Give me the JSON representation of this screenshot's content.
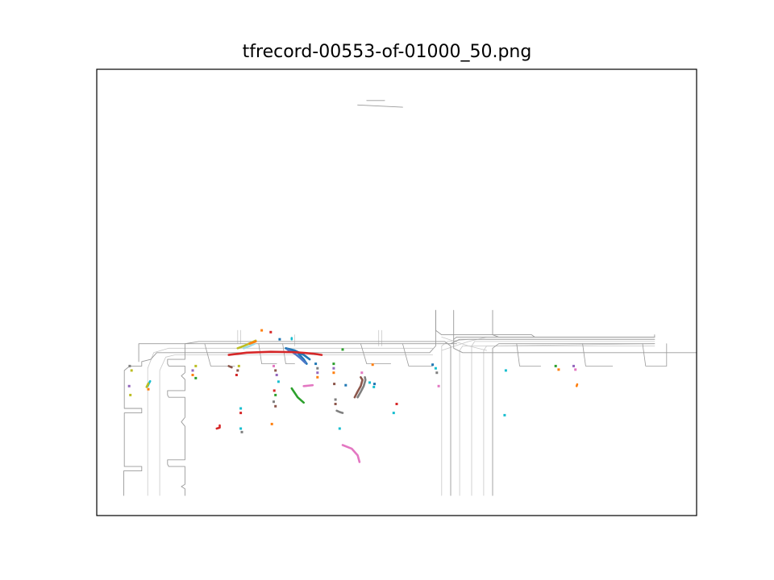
{
  "chart_data": {
    "type": "scatter",
    "title": "tfrecord-00553-of-01000_50.png",
    "xlabel": "",
    "ylabel": "",
    "xlim": [
      0,
      100
    ],
    "ylim": [
      0,
      100
    ],
    "grid": false,
    "axis_ticks": false,
    "road_color": "#9a9a9a",
    "lane_color": "#c8c8c8",
    "roads": [
      [
        [
          4.5,
          4.5
        ],
        [
          4.5,
          10
        ],
        [
          7.5,
          10
        ],
        [
          7.5,
          11
        ],
        [
          4.6,
          11
        ],
        [
          4.6,
          23
        ],
        [
          7.5,
          23
        ],
        [
          7.5,
          24
        ],
        [
          4.6,
          24
        ],
        [
          4.6,
          32.5
        ],
        [
          5.5,
          33.5
        ],
        [
          7.5,
          33.5
        ],
        [
          7.5,
          34.5
        ],
        [
          9,
          35
        ]
      ],
      [
        [
          9,
          35
        ],
        [
          10,
          36.5
        ],
        [
          55.5,
          36.5
        ],
        [
          56.5,
          38
        ],
        [
          56.5,
          46
        ]
      ],
      [
        [
          59.5,
          46
        ],
        [
          59.5,
          37.5
        ],
        [
          61,
          36.5
        ],
        [
          100,
          36.5
        ]
      ],
      [
        [
          14.7,
          4.5
        ],
        [
          14.7,
          6
        ],
        [
          14.1,
          6.5
        ],
        [
          14.7,
          7
        ],
        [
          14.7,
          11
        ],
        [
          12,
          11
        ],
        [
          11.8,
          11.5
        ],
        [
          11.8,
          12.5
        ],
        [
          14.7,
          12.5
        ],
        [
          14.7,
          20
        ],
        [
          14.1,
          21
        ],
        [
          14.7,
          22
        ],
        [
          14.7,
          26.5
        ],
        [
          12,
          26.5
        ],
        [
          11.8,
          27
        ],
        [
          11.8,
          28
        ],
        [
          14.7,
          28
        ],
        [
          14.7,
          30.5
        ],
        [
          14.1,
          31.3
        ],
        [
          14.7,
          32
        ],
        [
          14.7,
          33.5
        ],
        [
          12,
          33.5
        ],
        [
          11.8,
          34
        ],
        [
          11.8,
          35
        ],
        [
          14.7,
          35
        ],
        [
          14.7,
          38.5
        ],
        [
          17,
          39
        ],
        [
          58,
          39
        ],
        [
          59,
          38
        ],
        [
          59,
          4.5
        ]
      ],
      [
        [
          66,
          4.5
        ],
        [
          66,
          37.5
        ],
        [
          67,
          38.5
        ],
        [
          93,
          38.5
        ]
      ],
      [
        [
          7,
          34.5
        ],
        [
          7,
          38.5
        ],
        [
          60,
          38.5
        ]
      ],
      [
        [
          59,
          38.5
        ],
        [
          60.5,
          39.5
        ],
        [
          93,
          39.5
        ]
      ],
      [
        [
          56.5,
          46
        ],
        [
          56.5,
          41.5
        ],
        [
          57.5,
          40.5
        ],
        [
          72.5,
          40.5
        ],
        [
          73,
          40
        ],
        [
          93,
          40
        ]
      ],
      [
        [
          59.5,
          39.5
        ],
        [
          60,
          40
        ],
        [
          93,
          40
        ],
        [
          93,
          40.5
        ]
      ],
      [
        [
          66,
          46
        ],
        [
          66,
          40.5
        ],
        [
          67,
          40
        ],
        [
          93,
          40
        ]
      ],
      [
        [
          43.5,
          92
        ],
        [
          51,
          91.5
        ]
      ],
      [
        [
          45,
          93
        ],
        [
          48,
          93
        ]
      ]
    ],
    "lanes": [
      [
        [
          8.5,
          4.5
        ],
        [
          8.5,
          33
        ],
        [
          9.5,
          36.5
        ],
        [
          12,
          37.5
        ],
        [
          56,
          37.5
        ]
      ],
      [
        [
          10.5,
          4.5
        ],
        [
          10.5,
          32.5
        ],
        [
          11.5,
          35.5
        ],
        [
          13,
          36
        ],
        [
          56,
          36
        ]
      ],
      [
        [
          57.5,
          4.5
        ],
        [
          57.5,
          38
        ],
        [
          58.5,
          39
        ],
        [
          62,
          39.5
        ],
        [
          93,
          39.5
        ]
      ],
      [
        [
          60.5,
          4.5
        ],
        [
          60.5,
          37
        ],
        [
          61,
          38
        ],
        [
          93,
          38
        ]
      ],
      [
        [
          62.5,
          4.5
        ],
        [
          62.5,
          38
        ],
        [
          63,
          39
        ],
        [
          93,
          39
        ]
      ],
      [
        [
          64.5,
          4.5
        ],
        [
          64.5,
          37
        ],
        [
          65,
          38
        ],
        [
          93,
          38.5
        ]
      ],
      [
        [
          57.5,
          40
        ],
        [
          62,
          38
        ],
        [
          65,
          37
        ]
      ],
      [
        [
          57.5,
          37
        ],
        [
          62,
          39
        ],
        [
          65,
          40
        ]
      ],
      [
        [
          33,
          38
        ],
        [
          33,
          40.5
        ]
      ],
      [
        [
          47,
          38
        ],
        [
          47,
          41.5
        ]
      ],
      [
        [
          47.5,
          38
        ],
        [
          47.5,
          41.5
        ]
      ],
      [
        [
          23.5,
          38.5
        ],
        [
          23.5,
          41.5
        ]
      ],
      [
        [
          24,
          38.5
        ],
        [
          24,
          41.5
        ]
      ]
    ],
    "curbs": [
      [
        [
          18,
          38.5
        ],
        [
          19,
          33.5
        ],
        [
          23,
          33.5
        ]
      ],
      [
        [
          27,
          38.5
        ],
        [
          27.5,
          34
        ],
        [
          30,
          34
        ]
      ],
      [
        [
          31,
          38.5
        ],
        [
          31.5,
          34
        ],
        [
          33,
          34
        ]
      ],
      [
        [
          44,
          38.5
        ],
        [
          45,
          34
        ],
        [
          49,
          34
        ]
      ],
      [
        [
          51,
          38.5
        ],
        [
          52,
          33.5
        ],
        [
          56,
          33.5
        ]
      ],
      [
        [
          70,
          38.5
        ],
        [
          70.5,
          33.5
        ],
        [
          74,
          33.5
        ]
      ],
      [
        [
          81,
          38.5
        ],
        [
          81.5,
          33.5
        ],
        [
          86,
          33.5
        ]
      ],
      [
        [
          91,
          38.5
        ],
        [
          91.5,
          33.5
        ],
        [
          95,
          33.5
        ]
      ],
      [
        [
          95,
          38.5
        ],
        [
          95,
          33.5
        ]
      ]
    ],
    "series": [
      {
        "color": "#1f77b4",
        "points": [
          [
            31.5,
            37.5
          ],
          [
            33,
            37
          ],
          [
            34.5,
            36
          ],
          [
            35.5,
            35
          ]
        ]
      },
      {
        "color": "#1f77b4",
        "points": [
          [
            32,
            37
          ],
          [
            33.5,
            36.5
          ],
          [
            34.5,
            35
          ],
          [
            35,
            34
          ]
        ]
      },
      {
        "color": "#4c78c8",
        "points": [
          [
            31.8,
            37.2
          ],
          [
            33,
            36.3
          ],
          [
            34,
            35.2
          ],
          [
            34.8,
            34.2
          ]
        ]
      },
      {
        "color": "#d62728",
        "points": [
          [
            22,
            36
          ],
          [
            25,
            36.5
          ],
          [
            29,
            36.7
          ],
          [
            33,
            36.6
          ],
          [
            36,
            36.3
          ],
          [
            37.5,
            36
          ]
        ]
      },
      {
        "color": "#bcbd22",
        "points": [
          [
            23.5,
            37.5
          ],
          [
            24.5,
            38
          ],
          [
            25.5,
            38.6
          ],
          [
            26.5,
            39.2
          ]
        ]
      },
      {
        "color": "#9edae5",
        "points": [
          [
            24.5,
            37.5
          ],
          [
            25.5,
            38
          ],
          [
            26.3,
            38.5
          ]
        ]
      },
      {
        "color": "#ff7f0e",
        "points": [
          [
            25.5,
            38.5
          ],
          [
            26.5,
            39
          ]
        ]
      },
      {
        "color": "#2ca02c",
        "points": [
          [
            32.5,
            28.5
          ],
          [
            33,
            27.5
          ],
          [
            33.5,
            26.5
          ],
          [
            34.5,
            25.3
          ]
        ]
      },
      {
        "color": "#8c564b",
        "points": [
          [
            43,
            26.5
          ],
          [
            43.5,
            27.8
          ],
          [
            44,
            29
          ],
          [
            44.3,
            30.4
          ],
          [
            44,
            31
          ]
        ]
      },
      {
        "color": "#7f7f7f",
        "points": [
          [
            43.5,
            26.5
          ],
          [
            44,
            27.7
          ],
          [
            44.5,
            29
          ],
          [
            44.8,
            30.4
          ],
          [
            44.7,
            31
          ]
        ]
      },
      {
        "color": "#e377c2",
        "points": [
          [
            41,
            15.8
          ],
          [
            42.5,
            15
          ],
          [
            43.5,
            13.5
          ],
          [
            43.8,
            12
          ]
        ]
      },
      {
        "color": "#e377c2",
        "points": [
          [
            34.5,
            29
          ],
          [
            36,
            29.2
          ]
        ]
      },
      {
        "color": "#7f7f7f",
        "points": [
          [
            40,
            23.5
          ],
          [
            40.5,
            23.2
          ],
          [
            41,
            23
          ]
        ]
      },
      {
        "color": "#8c564b",
        "points": [
          [
            22,
            33.5
          ],
          [
            22.5,
            33.2
          ]
        ]
      },
      {
        "color": "#d62728",
        "points": [
          [
            20,
            19.5
          ],
          [
            20.5,
            19.7
          ],
          [
            20.5,
            20.2
          ]
        ]
      },
      {
        "color": "#17becf",
        "points": [
          [
            8.5,
            29
          ],
          [
            8.7,
            29.6
          ],
          [
            8.9,
            30.1
          ]
        ]
      },
      {
        "color": "#bcbd22",
        "points": [
          [
            8.3,
            28.8
          ],
          [
            8.6,
            29.6
          ]
        ]
      },
      {
        "color": "#17becf",
        "points": [
          [
            32.5,
            39.5
          ],
          [
            32.5,
            39.8
          ]
        ]
      },
      {
        "color": "#ff7f0e",
        "points": [
          [
            80,
            29
          ],
          [
            80.1,
            29.4
          ]
        ]
      }
    ],
    "points": [
      {
        "x": 5.5,
        "y": 33.5,
        "color": "#7f7f7f"
      },
      {
        "x": 5.8,
        "y": 32.5,
        "color": "#bcbd22"
      },
      {
        "x": 5.4,
        "y": 29,
        "color": "#9467bd"
      },
      {
        "x": 5.6,
        "y": 27,
        "color": "#bcbd22"
      },
      {
        "x": 8.6,
        "y": 28.3,
        "color": "#ff7f0e"
      },
      {
        "x": 16.5,
        "y": 33.5,
        "color": "#bcbd22"
      },
      {
        "x": 16,
        "y": 32.5,
        "color": "#9467bd"
      },
      {
        "x": 16,
        "y": 31.5,
        "color": "#ff7f0e"
      },
      {
        "x": 16.5,
        "y": 30.8,
        "color": "#2ca02c"
      },
      {
        "x": 23.7,
        "y": 33.5,
        "color": "#bcbd22"
      },
      {
        "x": 23.5,
        "y": 32.5,
        "color": "#8c564b"
      },
      {
        "x": 23.3,
        "y": 31.5,
        "color": "#d62728"
      },
      {
        "x": 27.5,
        "y": 41.5,
        "color": "#ff7f0e"
      },
      {
        "x": 29,
        "y": 41.1,
        "color": "#d62728"
      },
      {
        "x": 30.5,
        "y": 39.5,
        "color": "#1f77b4"
      },
      {
        "x": 41,
        "y": 37.2,
        "color": "#2ca02c"
      },
      {
        "x": 29.5,
        "y": 33.5,
        "color": "#e377c2"
      },
      {
        "x": 29.8,
        "y": 32.5,
        "color": "#8c564b"
      },
      {
        "x": 30,
        "y": 31.5,
        "color": "#9467bd"
      },
      {
        "x": 30.3,
        "y": 30,
        "color": "#17becf"
      },
      {
        "x": 29.6,
        "y": 28,
        "color": "#d62728"
      },
      {
        "x": 29.8,
        "y": 27,
        "color": "#2ca02c"
      },
      {
        "x": 29.5,
        "y": 25.5,
        "color": "#7f7f7f"
      },
      {
        "x": 29.8,
        "y": 24.5,
        "color": "#8c564b"
      },
      {
        "x": 24,
        "y": 24,
        "color": "#17becf"
      },
      {
        "x": 24,
        "y": 23,
        "color": "#d62728"
      },
      {
        "x": 24,
        "y": 19.5,
        "color": "#17becf"
      },
      {
        "x": 24.2,
        "y": 18.7,
        "color": "#7f7f7f"
      },
      {
        "x": 29.2,
        "y": 20.5,
        "color": "#ff7f0e"
      },
      {
        "x": 36.5,
        "y": 34,
        "color": "#1f77b4"
      },
      {
        "x": 36.8,
        "y": 33,
        "color": "#7f7f7f"
      },
      {
        "x": 36.8,
        "y": 32,
        "color": "#9467bd"
      },
      {
        "x": 36.8,
        "y": 31,
        "color": "#ff7f0e"
      },
      {
        "x": 39.5,
        "y": 34,
        "color": "#2ca02c"
      },
      {
        "x": 39.5,
        "y": 33,
        "color": "#9467bd"
      },
      {
        "x": 39.5,
        "y": 32,
        "color": "#ff7f0e"
      },
      {
        "x": 39.6,
        "y": 29.5,
        "color": "#8c564b"
      },
      {
        "x": 41.5,
        "y": 29.2,
        "color": "#1f77b4"
      },
      {
        "x": 39.8,
        "y": 26,
        "color": "#7f7f7f"
      },
      {
        "x": 39.8,
        "y": 25,
        "color": "#8c564b"
      },
      {
        "x": 40.5,
        "y": 19.5,
        "color": "#17becf"
      },
      {
        "x": 44.2,
        "y": 32,
        "color": "#e377c2"
      },
      {
        "x": 46,
        "y": 33.8,
        "color": "#ff7f0e"
      },
      {
        "x": 46.3,
        "y": 29.5,
        "color": "#1f77b4"
      },
      {
        "x": 45.5,
        "y": 29.8,
        "color": "#17becf"
      },
      {
        "x": 46.2,
        "y": 28.8,
        "color": "#17becf"
      },
      {
        "x": 50,
        "y": 25,
        "color": "#d62728"
      },
      {
        "x": 49.5,
        "y": 23,
        "color": "#17becf"
      },
      {
        "x": 56,
        "y": 33.8,
        "color": "#1f77b4"
      },
      {
        "x": 56.5,
        "y": 33,
        "color": "#17becf"
      },
      {
        "x": 56.7,
        "y": 32,
        "color": "#7f7f7f"
      },
      {
        "x": 57,
        "y": 29,
        "color": "#e377c2"
      },
      {
        "x": 68.2,
        "y": 32.5,
        "color": "#17becf"
      },
      {
        "x": 68,
        "y": 22.5,
        "color": "#17becf"
      },
      {
        "x": 76.5,
        "y": 33.5,
        "color": "#2ca02c"
      },
      {
        "x": 77,
        "y": 32.7,
        "color": "#ff7f0e"
      },
      {
        "x": 79.5,
        "y": 33.5,
        "color": "#9467bd"
      },
      {
        "x": 79.8,
        "y": 32.7,
        "color": "#e377c2"
      }
    ]
  }
}
